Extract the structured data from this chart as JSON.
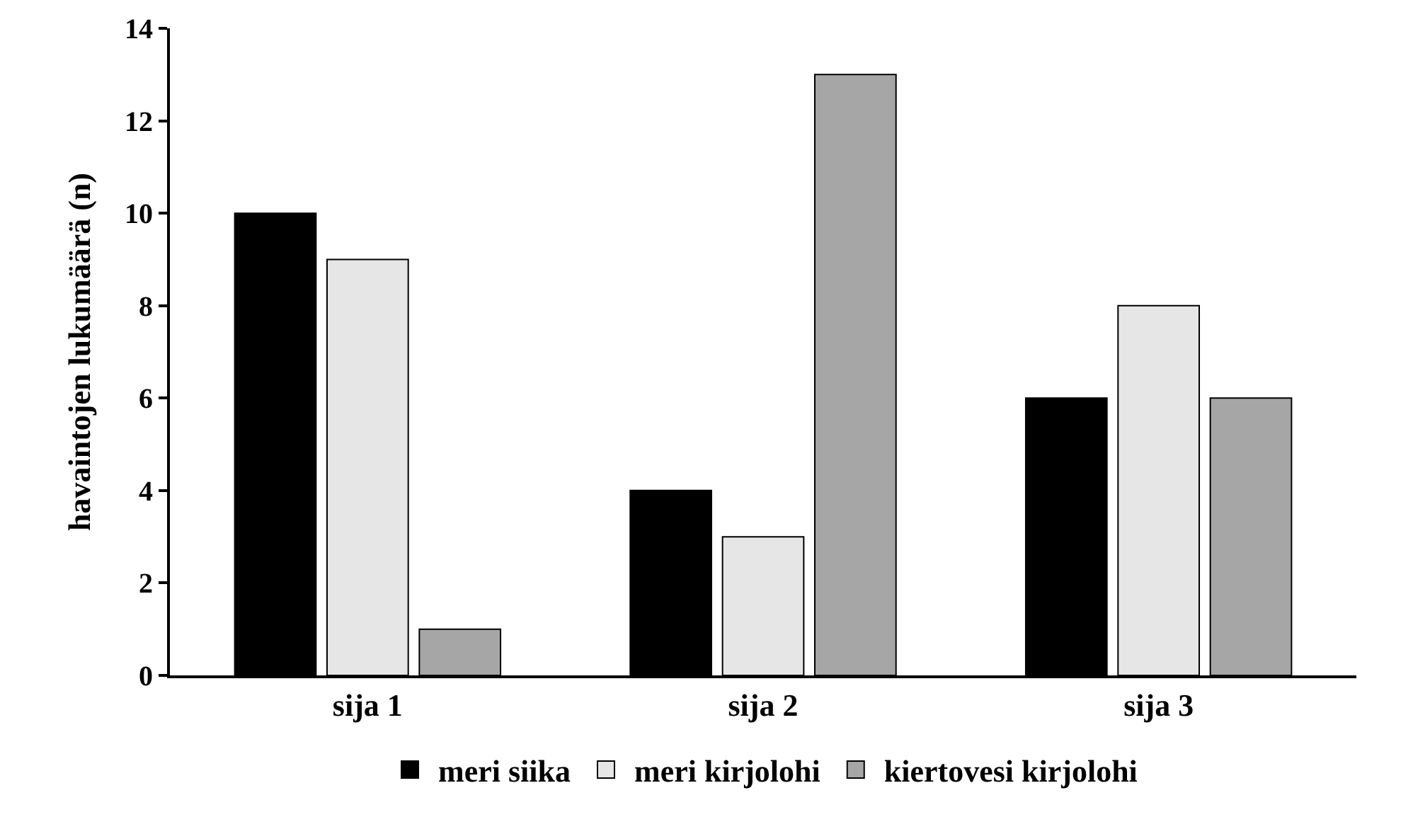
{
  "chart_data": {
    "type": "bar",
    "ylabel": "havaintojen lukumäärä (n)",
    "categories": [
      "sija 1",
      "sija 2",
      "sija 3"
    ],
    "series": [
      {
        "name": "meri siika",
        "color": "#000000",
        "values": [
          10,
          4,
          6
        ]
      },
      {
        "name": "meri kirjolohi",
        "color": "#e6e6e6",
        "values": [
          9,
          3,
          8
        ]
      },
      {
        "name": "kiertovesi kirjolohi",
        "color": "#a6a6a6",
        "values": [
          1,
          13,
          6
        ]
      }
    ],
    "ylim": [
      0,
      14
    ],
    "yticks": [
      0,
      2,
      4,
      6,
      8,
      10,
      12,
      14
    ],
    "grid": false,
    "legend": "bottom"
  }
}
